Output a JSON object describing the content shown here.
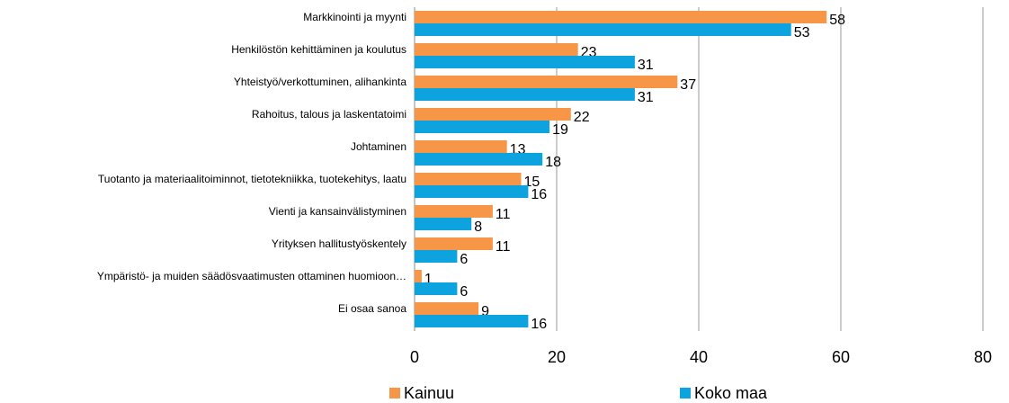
{
  "chart_data": {
    "type": "hbar",
    "categories": [
      "Markkinointi ja myynti",
      "Henkilöstön kehittäminen ja koulutus",
      "Yhteistyö/verkottuminen, alihankinta",
      "Rahoitus, talous ja laskentatoimi",
      "Johtaminen",
      "Tuotanto ja materiaalitoiminnot, tietotekniikka, tuotekehitys, laatu",
      "Vienti ja kansainvälistyminen",
      "Yrityksen hallitustyöskentely",
      "Ympäristö- ja muiden säädösvaatimusten ottaminen huomioon…",
      "Ei osaa sanoa"
    ],
    "series": [
      {
        "name": "Kainuu",
        "color": "#f79646",
        "values": [
          58,
          23,
          37,
          22,
          13,
          15,
          11,
          11,
          1,
          9
        ]
      },
      {
        "name": "Koko maa",
        "color": "#0ca3de",
        "values": [
          53,
          31,
          31,
          19,
          18,
          16,
          8,
          6,
          6,
          16
        ]
      }
    ],
    "xlim": [
      0,
      80
    ],
    "xticks": [
      0,
      20,
      40,
      60,
      80
    ],
    "grid": true,
    "legend": "bottom"
  }
}
